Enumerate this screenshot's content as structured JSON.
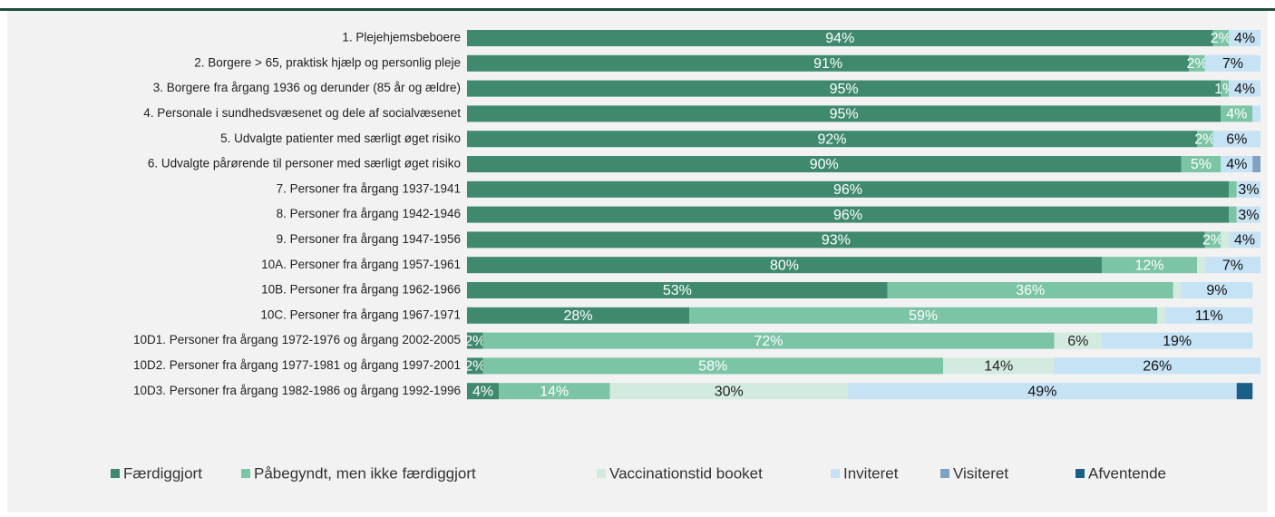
{
  "chart_data": {
    "type": "stacked-bar-horizontal",
    "categories": [
      "1. Plejehjemsbeboere",
      "2. Borgere > 65, praktisk hjælp og personlig pleje",
      "3. Borgere fra årgang 1936 og derunder (85 år og ældre)",
      "4. Personale i sundhedsvæsenet og dele af socialvæsenet",
      "5. Udvalgte patienter med særligt øget risiko",
      "6. Udvalgte pårørende til personer med særligt øget risiko",
      "7. Personer fra årgang 1937-1941",
      "8. Personer fra årgang 1942-1946",
      "9. Personer fra årgang 1947-1956",
      "10A. Personer fra årgang 1957-1961",
      "10B. Personer fra årgang 1962-1966",
      "10C. Personer fra årgang 1967-1971",
      "10D1. Personer fra årgang 1972-1976 og årgang 2002-2005",
      "10D2. Personer fra årgang 1977-1981 og årgang 1997-2001",
      "10D3. Personer fra årgang 1982-1986 og årgang 1992-1996"
    ],
    "xlim": [
      0,
      100
    ],
    "series": [
      {
        "name": "Færdiggjort",
        "color": "#3f8a6f",
        "label_color": "#ffffff",
        "values": [
          94,
          91,
          95,
          95,
          92,
          90,
          96,
          96,
          93,
          80,
          53,
          28,
          2,
          2,
          4
        ],
        "value_labels": [
          "94%",
          "91%",
          "95%",
          "95%",
          "92%",
          "90%",
          "96%",
          "96%",
          "93%",
          "80%",
          "53%",
          "28%",
          "2%",
          "2%",
          "4%"
        ]
      },
      {
        "name": "Påbegyndt, men ikke færdiggjort",
        "color": "#7cc4a6",
        "label_color": "#ffffff",
        "values": [
          2,
          2,
          1,
          4,
          2,
          5,
          1,
          1,
          2,
          12,
          36,
          59,
          72,
          58,
          14
        ],
        "value_labels": [
          "2%",
          "2%",
          "1%",
          "4%",
          "2%",
          "5%",
          null,
          null,
          "2%",
          "12%",
          "36%",
          "59%",
          "72%",
          "58%",
          "14%"
        ]
      },
      {
        "name": "Vaccinationstid booket",
        "color": "#d3ebdf",
        "label_color": "#222222",
        "values": [
          0,
          0,
          0,
          0,
          0,
          0,
          0,
          0,
          1,
          1,
          1,
          1,
          6,
          14,
          30
        ],
        "value_labels": [
          null,
          null,
          null,
          null,
          null,
          null,
          null,
          null,
          null,
          null,
          null,
          null,
          "6%",
          "14%",
          "30%"
        ]
      },
      {
        "name": "Inviteret",
        "color": "#c6e2f5",
        "label_color": "#111111",
        "values": [
          4,
          7,
          4,
          1,
          6,
          4,
          3,
          3,
          4,
          7,
          9,
          11,
          19,
          26,
          49
        ],
        "value_labels": [
          "4%",
          "7%",
          "4%",
          null,
          "6%",
          "4%",
          "3%",
          "3%",
          "4%",
          "7%",
          "9%",
          "11%",
          "19%",
          "26%",
          "49%"
        ]
      },
      {
        "name": "Visiteret",
        "color": "#7fa2c3",
        "label_color": "#ffffff",
        "values": [
          0,
          0,
          0,
          0,
          0,
          1,
          0,
          0,
          0,
          0,
          0,
          0,
          0,
          0,
          0
        ],
        "value_labels": [
          null,
          null,
          null,
          null,
          null,
          null,
          null,
          null,
          null,
          null,
          null,
          null,
          null,
          null,
          null
        ]
      },
      {
        "name": "Afventende",
        "color": "#1b5f88",
        "label_color": "#ffffff",
        "values": [
          0,
          0,
          0,
          0,
          0,
          0,
          0,
          0,
          0,
          0,
          0,
          0,
          0,
          0,
          2
        ],
        "value_labels": [
          null,
          null,
          null,
          null,
          null,
          null,
          null,
          null,
          null,
          null,
          null,
          null,
          null,
          null,
          null
        ]
      }
    ],
    "legend": "bottom"
  }
}
